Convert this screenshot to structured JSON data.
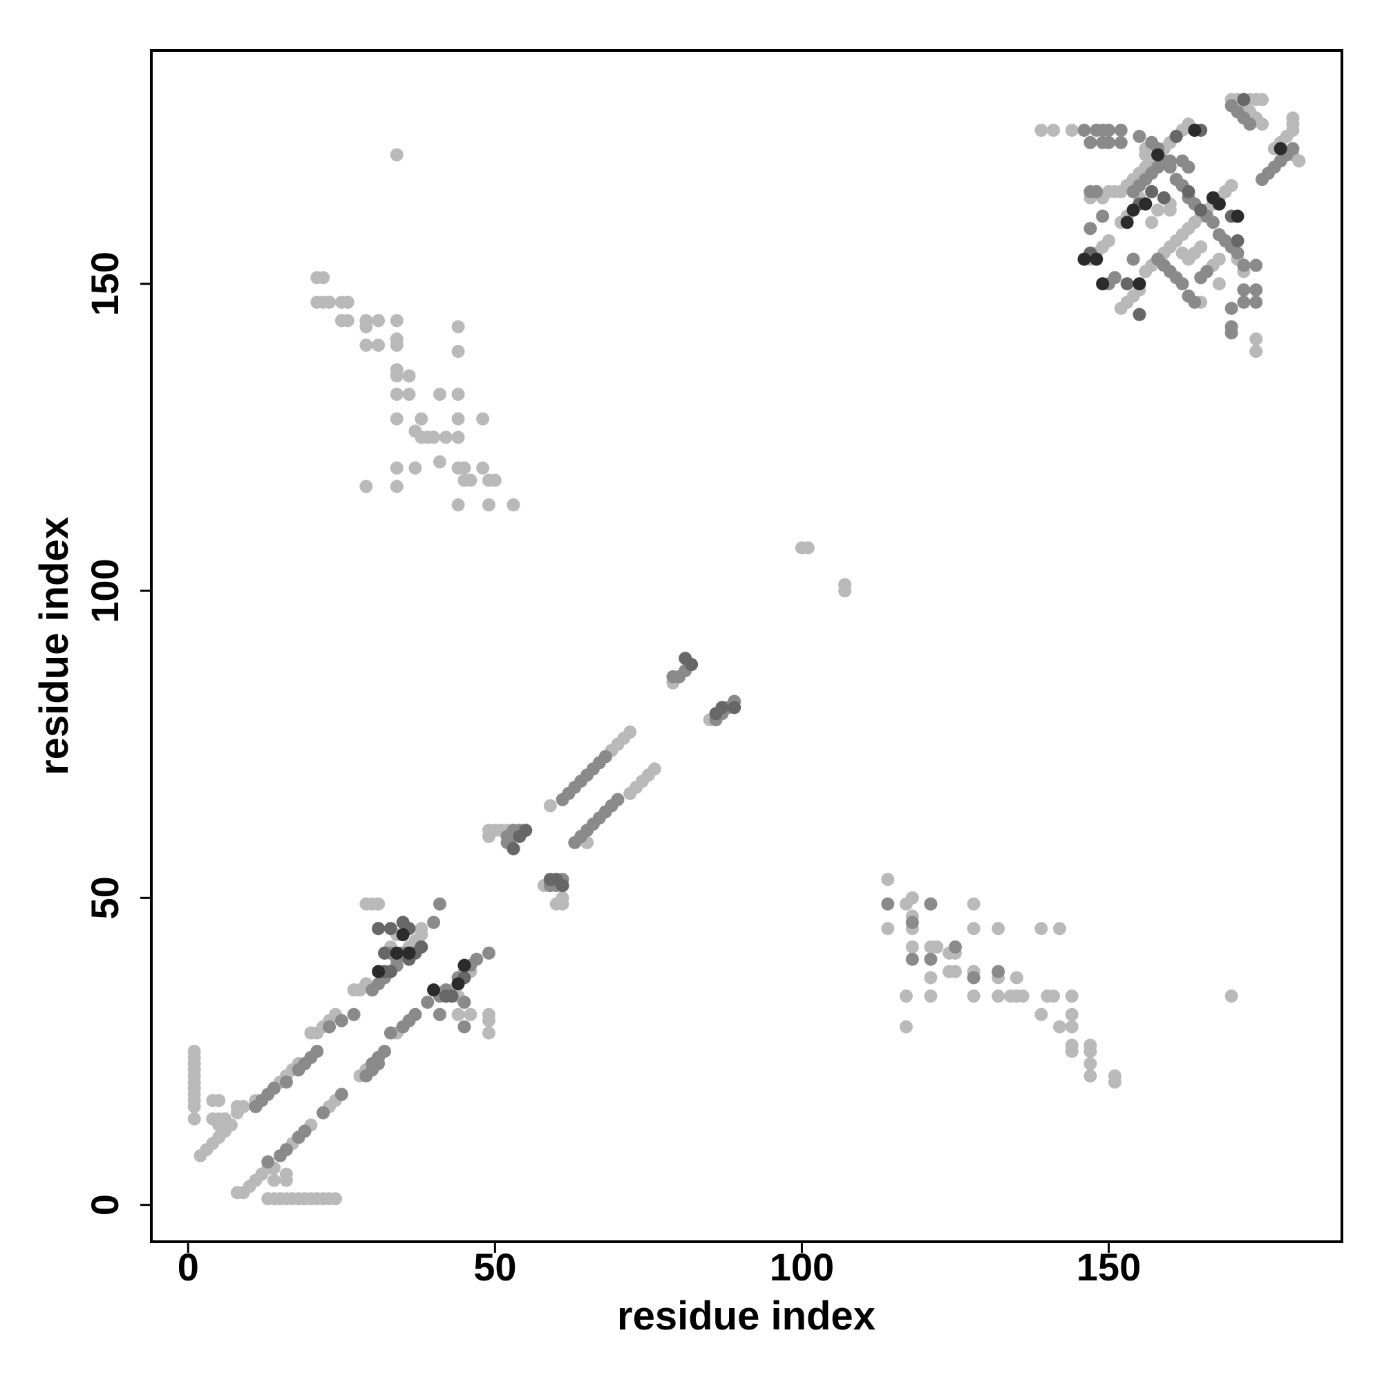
{
  "chart_data": {
    "type": "scatter",
    "x_label": "residue index",
    "y_label": "residue index",
    "xlim": [
      -6,
      188
    ],
    "ylim": [
      -6,
      188
    ],
    "xticks": [
      0,
      50,
      100,
      150
    ],
    "yticks": [
      0,
      50,
      100,
      150
    ],
    "series": [
      {
        "color": "#b9b9b9",
        "x": [
          34,
          21,
          22,
          21,
          22,
          23,
          25,
          26,
          25,
          26,
          29,
          29,
          31,
          34,
          29,
          31,
          34,
          34,
          44,
          44,
          34,
          34,
          34,
          36,
          36,
          38,
          37,
          38,
          39,
          40,
          42,
          44,
          34,
          37,
          41,
          44,
          45,
          48,
          29,
          34,
          45,
          46,
          49,
          50,
          44,
          49,
          53,
          48,
          44,
          44,
          41,
          34,
          114,
          114,
          117,
          118,
          118,
          118,
          121,
          118,
          121,
          122,
          121,
          124,
          125,
          124,
          125,
          128,
          128,
          128,
          128,
          132,
          132,
          132,
          134,
          135,
          135,
          136,
          139,
          140,
          141,
          139,
          142,
          144,
          144,
          142,
          144,
          144,
          144,
          147,
          147,
          147,
          147,
          151,
          151,
          117,
          121,
          117,
          170,
          1,
          1,
          1,
          1,
          1,
          1,
          1,
          1,
          1,
          1,
          1,
          2,
          3,
          4,
          5,
          6,
          7,
          4,
          5,
          6,
          4,
          5,
          8,
          9,
          5,
          6,
          8,
          9,
          10,
          11,
          12,
          13,
          14,
          14,
          16,
          16,
          13,
          14,
          15,
          16,
          17,
          18,
          19,
          20,
          21,
          22,
          23,
          24,
          16,
          17,
          18,
          19,
          20,
          22,
          23,
          24,
          28,
          29,
          30,
          31,
          34,
          35,
          36,
          44,
          45,
          46,
          42,
          43,
          44,
          44,
          44,
          46,
          49,
          49,
          49,
          8,
          9,
          11,
          14,
          15,
          16,
          17,
          18,
          20,
          21,
          22,
          23,
          24,
          27,
          28,
          29,
          29,
          30,
          31,
          31,
          34,
          35,
          36,
          37,
          38,
          38,
          33,
          49,
          49,
          50,
          51,
          52,
          53,
          55,
          59,
          60,
          61,
          61,
          58,
          65,
          68,
          69,
          70,
          71,
          72,
          72,
          73,
          74,
          75,
          76,
          79,
          85,
          100,
          101,
          107,
          107,
          139,
          141,
          144,
          147,
          149,
          150,
          151,
          152,
          153,
          154,
          155,
          156,
          157,
          158,
          159,
          160,
          161,
          162,
          163,
          147,
          148,
          149,
          150,
          152,
          153,
          154,
          155,
          156,
          157,
          158,
          159,
          160,
          161,
          162,
          163,
          164,
          165,
          166,
          167,
          168,
          169,
          170,
          170,
          171,
          172,
          173,
          174,
          175,
          172,
          173,
          174,
          175,
          177,
          178,
          179,
          180,
          180,
          180,
          180,
          181,
          162,
          163,
          164,
          165,
          167,
          168,
          171,
          172,
          174,
          174,
          165,
          168,
          160,
          160,
          156,
          156,
          155,
          157,
          158,
          152,
          153
        ],
        "values": [
          171,
          151,
          151,
          147,
          147,
          147,
          147,
          147,
          144,
          144,
          144,
          143,
          144,
          144,
          140,
          140,
          141,
          140,
          143,
          139,
          136,
          135,
          132,
          135,
          132,
          128,
          126,
          125,
          125,
          125,
          125,
          125,
          120,
          120,
          121,
          120,
          120,
          120,
          117,
          117,
          118,
          118,
          118,
          118,
          114,
          114,
          114,
          128,
          128,
          132,
          132,
          128,
          53,
          45,
          49,
          50,
          47,
          45,
          49,
          42,
          42,
          42,
          37,
          41,
          41,
          38,
          38,
          49,
          45,
          38,
          34,
          45,
          37,
          34,
          34,
          37,
          34,
          34,
          45,
          34,
          34,
          31,
          45,
          34,
          31,
          29,
          29,
          26,
          25,
          26,
          25,
          23,
          21,
          21,
          20,
          34,
          34,
          29,
          34,
          25,
          24,
          23,
          22,
          21,
          20,
          19,
          18,
          17,
          16,
          14,
          8,
          9,
          10,
          11,
          12,
          13,
          14,
          14,
          14,
          17,
          17,
          16,
          16,
          13,
          13,
          2,
          2,
          3,
          4,
          5,
          6,
          6,
          4,
          5,
          4,
          1,
          1,
          1,
          1,
          1,
          1,
          1,
          1,
          1,
          1,
          1,
          1,
          9,
          10,
          11,
          12,
          13,
          15,
          16,
          17,
          21,
          22,
          23,
          24,
          28,
          29,
          30,
          37,
          38,
          38,
          34,
          35,
          36,
          31,
          34,
          31,
          31,
          30,
          28,
          15,
          16,
          17,
          19,
          20,
          21,
          22,
          23,
          28,
          28,
          29,
          30,
          31,
          35,
          35,
          36,
          49,
          49,
          49,
          45,
          44,
          41,
          42,
          43,
          44,
          45,
          42,
          60,
          61,
          61,
          61,
          61,
          61,
          61,
          65,
          49,
          49,
          50,
          52,
          59,
          73,
          74,
          75,
          76,
          77,
          67,
          68,
          69,
          70,
          71,
          85,
          79,
          107,
          107,
          101,
          100,
          175,
          175,
          175,
          164,
          164,
          165,
          165,
          165,
          166,
          167,
          168,
          169,
          170,
          171,
          172,
          173,
          174,
          175,
          176,
          154,
          155,
          156,
          157,
          146,
          147,
          148,
          149,
          152,
          153,
          154,
          155,
          156,
          157,
          158,
          159,
          160,
          161,
          162,
          163,
          164,
          165,
          166,
          180,
          180,
          180,
          180,
          180,
          180,
          179,
          178,
          177,
          176,
          172,
          173,
          174,
          175,
          176,
          177,
          171,
          170,
          155,
          154,
          155,
          156,
          153,
          154,
          154,
          152,
          141,
          139,
          147,
          150,
          162,
          163,
          171,
          172,
          164,
          160,
          162,
          160,
          161
        ]
      },
      {
        "color": "#8a8a8a",
        "x": [
          11,
          12,
          13,
          14,
          16,
          18,
          19,
          20,
          21,
          23,
          25,
          27,
          30,
          31,
          32,
          29,
          30,
          31,
          13,
          15,
          16,
          18,
          19,
          22,
          25,
          33,
          34,
          35,
          33,
          35,
          36,
          37,
          39,
          41,
          42,
          44,
          46,
          47,
          49,
          45,
          41,
          30,
          31,
          32,
          33,
          34,
          40,
          41,
          45,
          63,
          64,
          65,
          66,
          67,
          68,
          69,
          70,
          61,
          62,
          63,
          64,
          65,
          66,
          67,
          68,
          79,
          80,
          81,
          82,
          86,
          87,
          88,
          89,
          59,
          60,
          61,
          61,
          52,
          52,
          53,
          53,
          54,
          114,
          118,
          121,
          118,
          121,
          125,
          128,
          132,
          146,
          148,
          149,
          150,
          152,
          149,
          150,
          147,
          152,
          155,
          157,
          158,
          160,
          162,
          163,
          160,
          161,
          162,
          163,
          164,
          165,
          166,
          167,
          168,
          169,
          170,
          171,
          172,
          174,
          172,
          174,
          172,
          174,
          170,
          170,
          170,
          158,
          159,
          160,
          161,
          163,
          164,
          162,
          165,
          166,
          154,
          155,
          156,
          157,
          158,
          159,
          150,
          151,
          154,
          175,
          176,
          177,
          178,
          179,
          180,
          171,
          172,
          173,
          170,
          147,
          149,
          147,
          148,
          156,
          157
        ],
        "values": [
          16,
          17,
          18,
          19,
          20,
          22,
          23,
          24,
          25,
          29,
          30,
          31,
          23,
          24,
          25,
          21,
          22,
          23,
          7,
          8,
          9,
          11,
          12,
          15,
          18,
          41,
          40,
          41,
          28,
          29,
          30,
          31,
          33,
          34,
          35,
          37,
          39,
          40,
          41,
          29,
          31,
          35,
          36,
          37,
          38,
          39,
          46,
          49,
          33,
          59,
          60,
          61,
          62,
          63,
          64,
          65,
          66,
          66,
          67,
          68,
          69,
          70,
          71,
          72,
          73,
          86,
          86,
          87,
          88,
          79,
          80,
          81,
          82,
          52,
          52,
          53,
          52,
          59,
          60,
          60,
          61,
          61,
          49,
          46,
          49,
          40,
          40,
          42,
          37,
          38,
          175,
          175,
          175,
          175,
          175,
          173,
          173,
          173,
          173,
          174,
          173,
          172,
          170,
          170,
          169,
          169,
          167,
          166,
          164,
          163,
          162,
          161,
          160,
          158,
          157,
          156,
          155,
          153,
          153,
          149,
          149,
          147,
          147,
          146,
          142,
          143,
          154,
          153,
          152,
          151,
          148,
          147,
          150,
          151,
          152,
          165,
          166,
          167,
          168,
          169,
          170,
          150,
          151,
          154,
          167,
          168,
          169,
          170,
          171,
          172,
          178,
          177,
          176,
          179,
          159,
          161,
          165,
          165,
          163,
          165
        ]
      },
      {
        "color": "#676767",
        "x": [
          31,
          33,
          35,
          36,
          32,
          32,
          33,
          36,
          37,
          38,
          42,
          43,
          45,
          53,
          54,
          55,
          61,
          60,
          59,
          86,
          87,
          89,
          82,
          81,
          147,
          153,
          155,
          159,
          163,
          165,
          168,
          170,
          155,
          157,
          171,
          164,
          165,
          161,
          172
        ],
        "values": [
          45,
          45,
          46,
          45,
          41,
          38,
          38,
          40,
          41,
          42,
          34,
          34,
          37,
          58,
          60,
          61,
          52,
          53,
          53,
          80,
          81,
          81,
          88,
          89,
          155,
          150,
          145,
          164,
          165,
          162,
          163,
          161,
          163,
          165,
          157,
          175,
          175,
          174,
          180
        ]
      },
      {
        "color": "#2b2b2b",
        "x": [
          35,
          36,
          31,
          34,
          44,
          45,
          40,
          146,
          148,
          149,
          155,
          154,
          156,
          164,
          168,
          171,
          178,
          153,
          158,
          167
        ],
        "values": [
          44,
          41,
          38,
          41,
          36,
          39,
          35,
          154,
          154,
          150,
          150,
          162,
          163,
          175,
          163,
          161,
          172,
          160,
          171,
          164
        ]
      }
    ]
  }
}
